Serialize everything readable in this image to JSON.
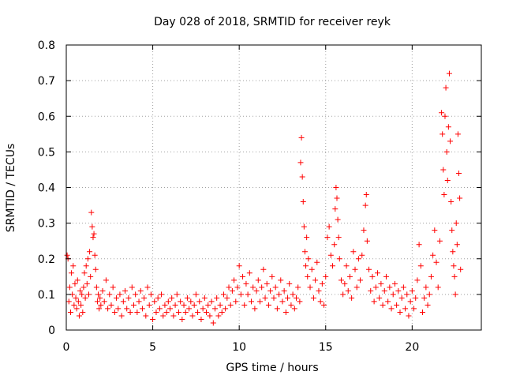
{
  "chart_data": {
    "type": "scatter",
    "title": "Day 028 of 2018, SRMTID for receiver reyk",
    "xlabel": "GPS time / hours",
    "ylabel": "SRMTID / TECUs",
    "xlim": [
      0,
      24
    ],
    "ylim": [
      0,
      0.8
    ],
    "xticks": [
      0,
      5,
      10,
      15,
      20
    ],
    "yticks": [
      0,
      0.1,
      0.2,
      0.3,
      0.4,
      0.5,
      0.6,
      0.7,
      0.8
    ],
    "xtick_labels": [
      "0",
      "5",
      "10",
      "15",
      "20"
    ],
    "ytick_labels": [
      "0",
      "0.1",
      "0.2",
      "0.3",
      "0.4",
      "0.5",
      "0.6",
      "0.7",
      "0.8"
    ],
    "grid": true,
    "marker": "+",
    "color": "#ff0000",
    "series": [
      {
        "name": "SRMTID",
        "points": [
          [
            0.05,
            0.21
          ],
          [
            0.1,
            0.2
          ],
          [
            0.15,
            0.08
          ],
          [
            0.2,
            0.12
          ],
          [
            0.25,
            0.05
          ],
          [
            0.3,
            0.16
          ],
          [
            0.35,
            0.1
          ],
          [
            0.4,
            0.18
          ],
          [
            0.45,
            0.07
          ],
          [
            0.5,
            0.13
          ],
          [
            0.55,
            0.09
          ],
          [
            0.6,
            0.06
          ],
          [
            0.65,
            0.14
          ],
          [
            0.7,
            0.08
          ],
          [
            0.75,
            0.04
          ],
          [
            0.8,
            0.11
          ],
          [
            0.85,
            0.07
          ],
          [
            0.9,
            0.1
          ],
          [
            0.95,
            0.05
          ],
          [
            1.0,
            0.12
          ],
          [
            1.05,
            0.16
          ],
          [
            1.1,
            0.09
          ],
          [
            1.15,
            0.18
          ],
          [
            1.2,
            0.13
          ],
          [
            1.25,
            0.2
          ],
          [
            1.3,
            0.1
          ],
          [
            1.35,
            0.22
          ],
          [
            1.4,
            0.15
          ],
          [
            1.45,
            0.33
          ],
          [
            1.5,
            0.29
          ],
          [
            1.55,
            0.26
          ],
          [
            1.6,
            0.27
          ],
          [
            1.65,
            0.21
          ],
          [
            1.7,
            0.17
          ],
          [
            1.75,
            0.12
          ],
          [
            1.8,
            0.08
          ],
          [
            1.85,
            0.1
          ],
          [
            1.9,
            0.06
          ],
          [
            1.95,
            0.09
          ],
          [
            2.0,
            0.07
          ],
          [
            2.1,
            0.11
          ],
          [
            2.2,
            0.08
          ],
          [
            2.3,
            0.14
          ],
          [
            2.4,
            0.06
          ],
          [
            2.5,
            0.1
          ],
          [
            2.6,
            0.07
          ],
          [
            2.7,
            0.12
          ],
          [
            2.8,
            0.05
          ],
          [
            2.9,
            0.09
          ],
          [
            3.0,
            0.06
          ],
          [
            3.1,
            0.1
          ],
          [
            3.2,
            0.04
          ],
          [
            3.3,
            0.08
          ],
          [
            3.4,
            0.11
          ],
          [
            3.5,
            0.06
          ],
          [
            3.6,
            0.09
          ],
          [
            3.7,
            0.05
          ],
          [
            3.8,
            0.12
          ],
          [
            3.9,
            0.07
          ],
          [
            4.0,
            0.1
          ],
          [
            4.1,
            0.05
          ],
          [
            4.2,
            0.08
          ],
          [
            4.3,
            0.11
          ],
          [
            4.4,
            0.06
          ],
          [
            4.5,
            0.09
          ],
          [
            4.6,
            0.04
          ],
          [
            4.7,
            0.12
          ],
          [
            4.8,
            0.07
          ],
          [
            4.9,
            0.1
          ],
          [
            5.0,
            0.03
          ],
          [
            5.1,
            0.08
          ],
          [
            5.2,
            0.05
          ],
          [
            5.3,
            0.09
          ],
          [
            5.4,
            0.06
          ],
          [
            5.5,
            0.1
          ],
          [
            5.6,
            0.04
          ],
          [
            5.7,
            0.07
          ],
          [
            5.8,
            0.05
          ],
          [
            5.9,
            0.08
          ],
          [
            6.0,
            0.06
          ],
          [
            6.1,
            0.09
          ],
          [
            6.2,
            0.04
          ],
          [
            6.3,
            0.07
          ],
          [
            6.4,
            0.1
          ],
          [
            6.5,
            0.05
          ],
          [
            6.6,
            0.08
          ],
          [
            6.7,
            0.03
          ],
          [
            6.8,
            0.07
          ],
          [
            6.9,
            0.05
          ],
          [
            7.0,
            0.09
          ],
          [
            7.1,
            0.06
          ],
          [
            7.2,
            0.08
          ],
          [
            7.3,
            0.04
          ],
          [
            7.4,
            0.07
          ],
          [
            7.5,
            0.1
          ],
          [
            7.6,
            0.05
          ],
          [
            7.7,
            0.08
          ],
          [
            7.8,
            0.03
          ],
          [
            7.9,
            0.06
          ],
          [
            8.0,
            0.09
          ],
          [
            8.1,
            0.05
          ],
          [
            8.2,
            0.07
          ],
          [
            8.3,
            0.04
          ],
          [
            8.4,
            0.08
          ],
          [
            8.5,
            0.02
          ],
          [
            8.6,
            0.06
          ],
          [
            8.7,
            0.09
          ],
          [
            8.8,
            0.04
          ],
          [
            8.9,
            0.07
          ],
          [
            9.0,
            0.05
          ],
          [
            9.1,
            0.1
          ],
          [
            9.2,
            0.06
          ],
          [
            9.3,
            0.09
          ],
          [
            9.4,
            0.12
          ],
          [
            9.5,
            0.07
          ],
          [
            9.6,
            0.11
          ],
          [
            9.7,
            0.14
          ],
          [
            9.8,
            0.08
          ],
          [
            9.9,
            0.12
          ],
          [
            10.0,
            0.18
          ],
          [
            10.1,
            0.1
          ],
          [
            10.2,
            0.15
          ],
          [
            10.3,
            0.07
          ],
          [
            10.4,
            0.13
          ],
          [
            10.5,
            0.1
          ],
          [
            10.6,
            0.16
          ],
          [
            10.7,
            0.08
          ],
          [
            10.8,
            0.12
          ],
          [
            10.9,
            0.06
          ],
          [
            11.0,
            0.11
          ],
          [
            11.1,
            0.14
          ],
          [
            11.2,
            0.08
          ],
          [
            11.3,
            0.12
          ],
          [
            11.4,
            0.17
          ],
          [
            11.5,
            0.09
          ],
          [
            11.6,
            0.13
          ],
          [
            11.7,
            0.07
          ],
          [
            11.8,
            0.11
          ],
          [
            11.9,
            0.15
          ],
          [
            12.0,
            0.09
          ],
          [
            12.1,
            0.12
          ],
          [
            12.2,
            0.06
          ],
          [
            12.3,
            0.1
          ],
          [
            12.4,
            0.14
          ],
          [
            12.5,
            0.08
          ],
          [
            12.6,
            0.11
          ],
          [
            12.7,
            0.05
          ],
          [
            12.8,
            0.09
          ],
          [
            12.9,
            0.13
          ],
          [
            13.0,
            0.07
          ],
          [
            13.1,
            0.1
          ],
          [
            13.2,
            0.06
          ],
          [
            13.3,
            0.09
          ],
          [
            13.4,
            0.12
          ],
          [
            13.5,
            0.08
          ],
          [
            13.55,
            0.47
          ],
          [
            13.6,
            0.54
          ],
          [
            13.65,
            0.43
          ],
          [
            13.7,
            0.36
          ],
          [
            13.75,
            0.29
          ],
          [
            13.8,
            0.22
          ],
          [
            13.85,
            0.18
          ],
          [
            13.9,
            0.26
          ],
          [
            13.95,
            0.15
          ],
          [
            14.0,
            0.2
          ],
          [
            14.1,
            0.12
          ],
          [
            14.2,
            0.17
          ],
          [
            14.3,
            0.09
          ],
          [
            14.4,
            0.14
          ],
          [
            14.5,
            0.19
          ],
          [
            14.6,
            0.11
          ],
          [
            14.7,
            0.08
          ],
          [
            14.8,
            0.13
          ],
          [
            14.9,
            0.07
          ],
          [
            15.0,
            0.15
          ],
          [
            15.1,
            0.26
          ],
          [
            15.2,
            0.29
          ],
          [
            15.3,
            0.21
          ],
          [
            15.4,
            0.18
          ],
          [
            15.5,
            0.24
          ],
          [
            15.55,
            0.34
          ],
          [
            15.6,
            0.4
          ],
          [
            15.65,
            0.37
          ],
          [
            15.7,
            0.31
          ],
          [
            15.75,
            0.26
          ],
          [
            15.8,
            0.2
          ],
          [
            15.9,
            0.14
          ],
          [
            16.0,
            0.1
          ],
          [
            16.1,
            0.13
          ],
          [
            16.2,
            0.18
          ],
          [
            16.3,
            0.11
          ],
          [
            16.4,
            0.15
          ],
          [
            16.5,
            0.09
          ],
          [
            16.6,
            0.22
          ],
          [
            16.7,
            0.17
          ],
          [
            16.8,
            0.12
          ],
          [
            16.9,
            0.2
          ],
          [
            17.0,
            0.14
          ],
          [
            17.1,
            0.21
          ],
          [
            17.2,
            0.28
          ],
          [
            17.3,
            0.35
          ],
          [
            17.35,
            0.38
          ],
          [
            17.4,
            0.25
          ],
          [
            17.5,
            0.17
          ],
          [
            17.6,
            0.11
          ],
          [
            17.7,
            0.15
          ],
          [
            17.8,
            0.08
          ],
          [
            17.9,
            0.12
          ],
          [
            18.0,
            0.16
          ],
          [
            18.1,
            0.09
          ],
          [
            18.2,
            0.13
          ],
          [
            18.3,
            0.07
          ],
          [
            18.4,
            0.11
          ],
          [
            18.5,
            0.15
          ],
          [
            18.6,
            0.08
          ],
          [
            18.7,
            0.12
          ],
          [
            18.8,
            0.06
          ],
          [
            18.9,
            0.1
          ],
          [
            19.0,
            0.13
          ],
          [
            19.1,
            0.07
          ],
          [
            19.2,
            0.11
          ],
          [
            19.3,
            0.05
          ],
          [
            19.4,
            0.09
          ],
          [
            19.5,
            0.12
          ],
          [
            19.6,
            0.06
          ],
          [
            19.7,
            0.1
          ],
          [
            19.8,
            0.04
          ],
          [
            19.9,
            0.08
          ],
          [
            20.0,
            0.11
          ],
          [
            20.1,
            0.06
          ],
          [
            20.2,
            0.09
          ],
          [
            20.3,
            0.14
          ],
          [
            20.4,
            0.24
          ],
          [
            20.5,
            0.18
          ],
          [
            20.6,
            0.05
          ],
          [
            20.7,
            0.09
          ],
          [
            20.8,
            0.12
          ],
          [
            20.9,
            0.07
          ],
          [
            21.0,
            0.1
          ],
          [
            21.1,
            0.15
          ],
          [
            21.2,
            0.21
          ],
          [
            21.3,
            0.28
          ],
          [
            21.4,
            0.19
          ],
          [
            21.5,
            0.12
          ],
          [
            21.6,
            0.25
          ],
          [
            21.7,
            0.61
          ],
          [
            21.75,
            0.55
          ],
          [
            21.8,
            0.45
          ],
          [
            21.85,
            0.38
          ],
          [
            21.9,
            0.6
          ],
          [
            21.95,
            0.68
          ],
          [
            22.0,
            0.5
          ],
          [
            22.05,
            0.42
          ],
          [
            22.1,
            0.57
          ],
          [
            22.15,
            0.72
          ],
          [
            22.2,
            0.53
          ],
          [
            22.25,
            0.36
          ],
          [
            22.3,
            0.28
          ],
          [
            22.35,
            0.22
          ],
          [
            22.4,
            0.18
          ],
          [
            22.45,
            0.15
          ],
          [
            22.5,
            0.1
          ],
          [
            22.55,
            0.3
          ],
          [
            22.6,
            0.24
          ],
          [
            22.65,
            0.55
          ],
          [
            22.7,
            0.44
          ],
          [
            22.75,
            0.37
          ],
          [
            22.8,
            0.17
          ]
        ]
      }
    ]
  }
}
